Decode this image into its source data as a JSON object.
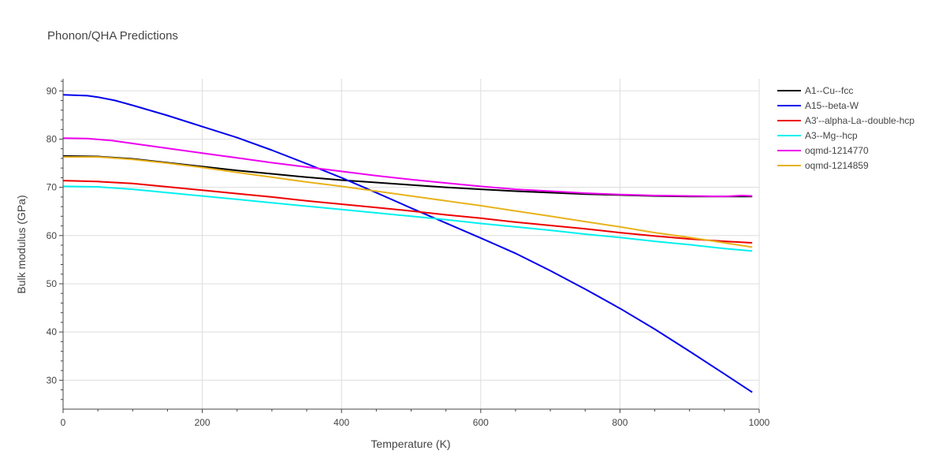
{
  "chart_data": {
    "type": "line",
    "title": "Phonon/QHA Predictions",
    "xlabel": "Temperature (K)",
    "ylabel": "Bulk modulus (GPa)",
    "xlim": [
      0,
      1000
    ],
    "ylim": [
      24,
      92.5
    ],
    "xticks": [
      0,
      200,
      400,
      600,
      800,
      1000
    ],
    "yticks": [
      30,
      40,
      50,
      60,
      70,
      80,
      90
    ],
    "grid": true,
    "legend_position": "top-right",
    "series": [
      {
        "name": "A1--Cu--fcc",
        "color": "#000000",
        "x": [
          0,
          50,
          100,
          150,
          200,
          250,
          300,
          350,
          400,
          450,
          500,
          550,
          600,
          650,
          700,
          750,
          800,
          850,
          900,
          950,
          990
        ],
        "y": [
          76.5,
          76.4,
          75.9,
          75.1,
          74.3,
          73.5,
          72.8,
          72.1,
          71.5,
          71.0,
          70.5,
          70.0,
          69.6,
          69.2,
          68.9,
          68.6,
          68.4,
          68.2,
          68.1,
          68.1,
          68.1
        ]
      },
      {
        "name": "A15--beta-W",
        "color": "#0000ee",
        "x": [
          0,
          35,
          50,
          75,
          100,
          150,
          200,
          250,
          300,
          350,
          400,
          450,
          500,
          550,
          600,
          650,
          700,
          750,
          800,
          850,
          900,
          950,
          990
        ],
        "y": [
          89.2,
          89.0,
          88.7,
          88.0,
          87.0,
          84.9,
          82.6,
          80.3,
          77.7,
          74.9,
          72.0,
          68.9,
          65.7,
          62.6,
          59.5,
          56.3,
          52.7,
          48.9,
          44.9,
          40.6,
          36.0,
          31.3,
          27.5
        ]
      },
      {
        "name": "A3'--alpha-La--double-hcp",
        "color": "#ee0000",
        "x": [
          0,
          50,
          100,
          150,
          200,
          250,
          300,
          350,
          400,
          450,
          500,
          550,
          600,
          650,
          700,
          750,
          800,
          850,
          900,
          950,
          990
        ],
        "y": [
          71.4,
          71.2,
          70.8,
          70.1,
          69.4,
          68.7,
          68.0,
          67.2,
          66.5,
          65.8,
          65.1,
          64.3,
          63.6,
          62.8,
          62.1,
          61.4,
          60.6,
          59.9,
          59.3,
          58.8,
          58.5
        ]
      },
      {
        "name": "A3--Mg--hcp",
        "color": "#00f0f0",
        "x": [
          0,
          50,
          100,
          150,
          200,
          250,
          300,
          350,
          400,
          450,
          500,
          550,
          600,
          650,
          700,
          750,
          800,
          850,
          900,
          950,
          990
        ],
        "y": [
          70.2,
          70.1,
          69.6,
          68.9,
          68.2,
          67.5,
          66.8,
          66.1,
          65.4,
          64.7,
          64.0,
          63.3,
          62.5,
          61.8,
          61.1,
          60.3,
          59.6,
          58.8,
          58.1,
          57.3,
          56.8
        ]
      },
      {
        "name": "oqmd-1214770",
        "color": "#ee00ee",
        "x": [
          0,
          35,
          70,
          100,
          150,
          200,
          250,
          300,
          350,
          400,
          450,
          500,
          550,
          600,
          650,
          700,
          750,
          800,
          850,
          900,
          950,
          975,
          990
        ],
        "y": [
          80.2,
          80.1,
          79.7,
          79.1,
          78.1,
          77.1,
          76.1,
          75.1,
          74.2,
          73.3,
          72.4,
          71.6,
          70.9,
          70.2,
          69.6,
          69.2,
          68.8,
          68.5,
          68.3,
          68.2,
          68.1,
          68.3,
          68.2
        ]
      },
      {
        "name": "oqmd-1214859",
        "color": "#e8b21a",
        "x": [
          0,
          50,
          100,
          150,
          200,
          250,
          300,
          350,
          400,
          450,
          500,
          550,
          600,
          650,
          700,
          750,
          800,
          850,
          900,
          950,
          990
        ],
        "y": [
          76.3,
          76.3,
          75.8,
          75.0,
          74.1,
          73.1,
          72.1,
          71.1,
          70.2,
          69.2,
          68.2,
          67.2,
          66.2,
          65.1,
          64.0,
          62.9,
          61.8,
          60.6,
          59.6,
          58.5,
          57.6
        ]
      }
    ]
  }
}
